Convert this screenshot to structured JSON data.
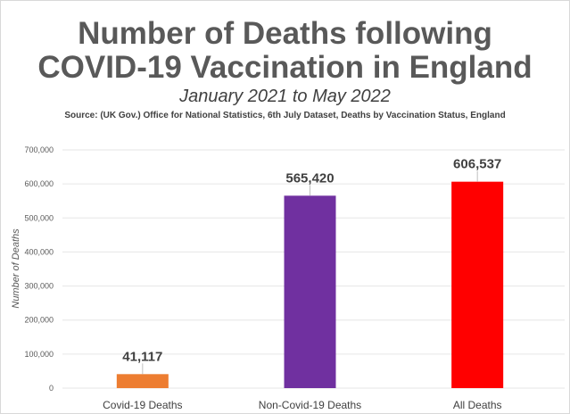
{
  "chart_data": {
    "type": "bar",
    "title": [
      "Number of Deaths following",
      "COVID-19 Vaccination in England"
    ],
    "subtitle": "January 2021 to May 2022",
    "source": "Source: (UK Gov.) Office for National Statistics, 6th July Dataset, Deaths by Vaccination Status, England",
    "xlabel": "",
    "ylabel": "Number of Deaths",
    "ylim": [
      0,
      700000
    ],
    "yticks": [
      0,
      100000,
      200000,
      300000,
      400000,
      500000,
      600000,
      700000
    ],
    "ytick_labels": [
      "0",
      "100,000",
      "200,000",
      "300,000",
      "400,000",
      "500,000",
      "600,000",
      "700,000"
    ],
    "grid": true,
    "categories": [
      "Covid-19 Deaths",
      "Non-Covid-19 Deaths",
      "All Deaths"
    ],
    "values": [
      41117,
      565420,
      606537
    ],
    "data_labels": [
      "41,117",
      "565,420",
      "606,537"
    ],
    "colors": [
      "#ED7D31",
      "#7030A0",
      "#FF0000"
    ]
  }
}
